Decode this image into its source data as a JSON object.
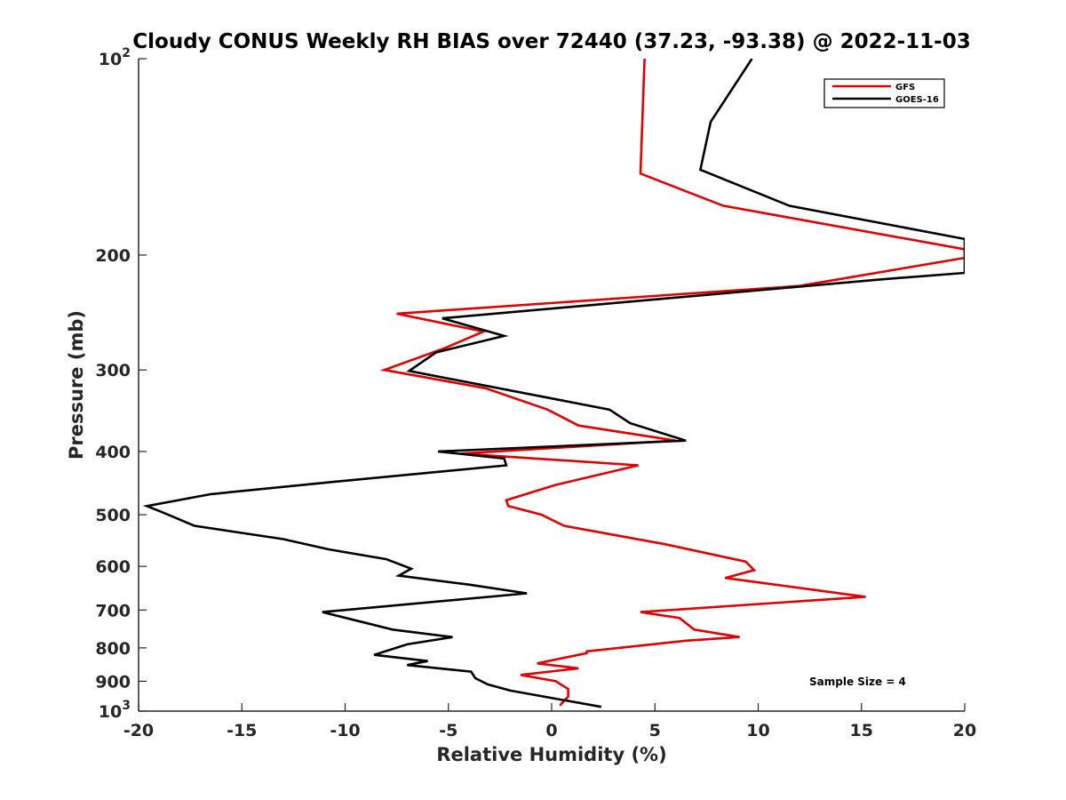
{
  "chart_data": {
    "type": "line",
    "title": "Cloudy CONUS Weekly RH BIAS over 72440 (37.23, -93.38) @ 2022-11-03",
    "xlabel": "Relative Humidity (%)",
    "ylabel": "Pressure (mb)",
    "xlim": [
      -20,
      20
    ],
    "ylim": [
      100,
      1000
    ],
    "yscale": "log",
    "yreversed": true,
    "xticks": [
      -20,
      -15,
      -10,
      -5,
      0,
      5,
      10,
      15,
      20
    ],
    "xtick_labels": [
      "-20",
      "-15",
      "-10",
      "-5",
      "0",
      "5",
      "10",
      "15",
      "20"
    ],
    "yticks": [
      {
        "value": 100,
        "label": "10",
        "sup": "2"
      },
      {
        "value": 200,
        "label": "200",
        "sup": ""
      },
      {
        "value": 300,
        "label": "300",
        "sup": ""
      },
      {
        "value": 400,
        "label": "400",
        "sup": ""
      },
      {
        "value": 500,
        "label": "500",
        "sup": ""
      },
      {
        "value": 600,
        "label": "600",
        "sup": ""
      },
      {
        "value": 700,
        "label": "700",
        "sup": ""
      },
      {
        "value": 800,
        "label": "800",
        "sup": ""
      },
      {
        "value": 900,
        "label": "900",
        "sup": ""
      },
      {
        "value": 1000,
        "label": "10",
        "sup": "3"
      }
    ],
    "grid": false,
    "legend_position": "top-right",
    "annotation": "Sample Size = 4",
    "series": [
      {
        "name": "GFS",
        "color": "#e00000",
        "points": [
          [
            4.5,
            100
          ],
          [
            4.3,
            150
          ],
          [
            8.3,
            168
          ],
          [
            20,
            196
          ],
          [
            20,
            202
          ],
          [
            12.0,
            223
          ],
          [
            -7.5,
            246
          ],
          [
            -3.3,
            262
          ],
          [
            -5.2,
            278
          ],
          [
            -8.1,
            300
          ],
          [
            -3.2,
            320
          ],
          [
            -0.2,
            345
          ],
          [
            1.3,
            365
          ],
          [
            6.0,
            385
          ],
          [
            -4.4,
            403
          ],
          [
            4.2,
            420
          ],
          [
            0.2,
            450
          ],
          [
            -2.2,
            475
          ],
          [
            -2.1,
            485
          ],
          [
            -0.5,
            500
          ],
          [
            0.6,
            520
          ],
          [
            5.5,
            555
          ],
          [
            9.4,
            590
          ],
          [
            9.8,
            608
          ],
          [
            8.4,
            625
          ],
          [
            15.2,
            668
          ],
          [
            4.3,
            705
          ],
          [
            6.2,
            720
          ],
          [
            6.9,
            750
          ],
          [
            9.1,
            770
          ],
          [
            6.5,
            780
          ],
          [
            1.7,
            810
          ],
          [
            1.7,
            815
          ],
          [
            -0.7,
            845
          ],
          [
            1.3,
            860
          ],
          [
            -1.5,
            880
          ],
          [
            0.2,
            900
          ],
          [
            0.8,
            925
          ],
          [
            0.8,
            950
          ],
          [
            0.4,
            980
          ]
        ]
      },
      {
        "name": "GOES-16",
        "color": "#000000",
        "points": [
          [
            9.7,
            100
          ],
          [
            7.7,
            125
          ],
          [
            7.2,
            148
          ],
          [
            11.5,
            168
          ],
          [
            20,
            189
          ],
          [
            20,
            213
          ],
          [
            15.9,
            218
          ],
          [
            -5.3,
            250
          ],
          [
            -2.3,
            266
          ],
          [
            -5.6,
            282
          ],
          [
            -6.9,
            301
          ],
          [
            2.8,
            345
          ],
          [
            3.8,
            362
          ],
          [
            6.5,
            385
          ],
          [
            -5.5,
            400
          ],
          [
            -2.3,
            410
          ],
          [
            -2.2,
            420
          ],
          [
            -10.5,
            445
          ],
          [
            -16.5,
            465
          ],
          [
            -19.6,
            485
          ],
          [
            -18.9,
            495
          ],
          [
            -17.3,
            520
          ],
          [
            -13.0,
            545
          ],
          [
            -10.8,
            565
          ],
          [
            -8.0,
            585
          ],
          [
            -6.8,
            605
          ],
          [
            -7.4,
            620
          ],
          [
            -4.0,
            640
          ],
          [
            -1.2,
            660
          ],
          [
            -11.1,
            705
          ],
          [
            -7.7,
            750
          ],
          [
            -4.8,
            770
          ],
          [
            -7.0,
            790
          ],
          [
            -8.6,
            820
          ],
          [
            -6.0,
            838
          ],
          [
            -7.0,
            850
          ],
          [
            -3.9,
            870
          ],
          [
            -3.7,
            890
          ],
          [
            -3.1,
            910
          ],
          [
            -2.0,
            930
          ],
          [
            2.4,
            985
          ]
        ]
      }
    ]
  }
}
